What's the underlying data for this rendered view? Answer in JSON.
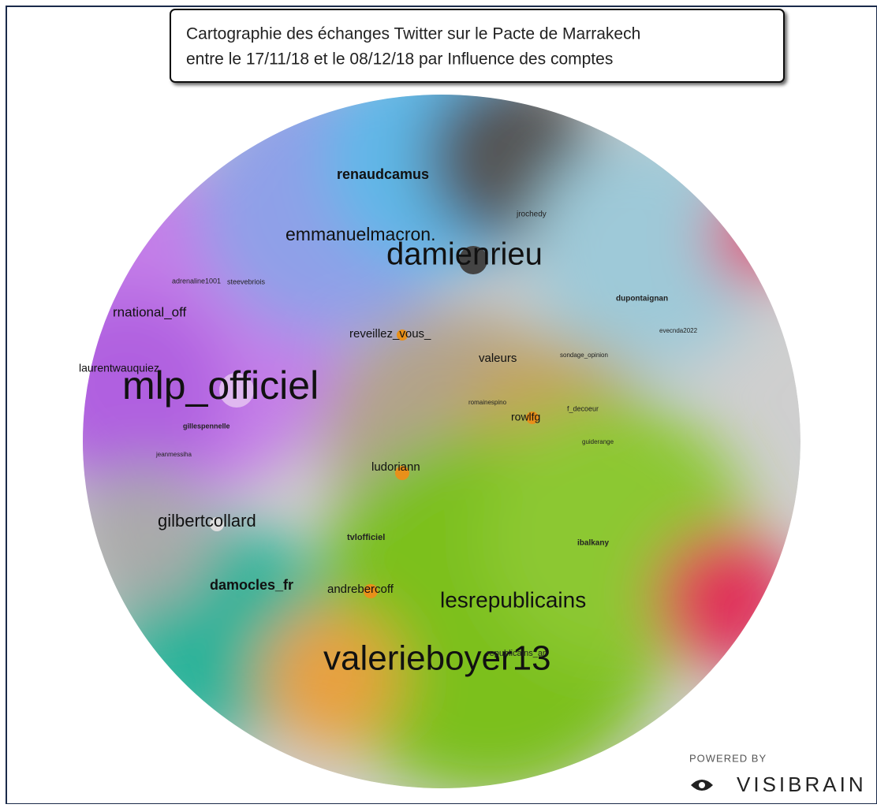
{
  "title": {
    "lines": [
      "Cartographie des échanges Twitter sur le Pacte de Marrakech",
      "entre le 17/11/18 et le 08/12/18 par Influence des comptes"
    ]
  },
  "nodes": [
    {
      "label": "mlp_officiel"
    },
    {
      "label": "damienrieu"
    },
    {
      "label": "valerieboyer13"
    },
    {
      "label": "lesrepublicains"
    },
    {
      "label": "emmanuelmacron."
    },
    {
      "label": "renaudcamus"
    },
    {
      "label": "gilbertcollard"
    },
    {
      "label": "damocles_fr"
    },
    {
      "label": "rnational_off"
    },
    {
      "label": "laurentwauquiez"
    },
    {
      "label": "reveillez_vous_"
    },
    {
      "label": "valeurs"
    },
    {
      "label": "rowlfg"
    },
    {
      "label": "ludoriann"
    },
    {
      "label": "andrebercoff"
    },
    {
      "label": "tvlofficiel"
    },
    {
      "label": "gillespennelle"
    },
    {
      "label": "jrochedy"
    },
    {
      "label": "dupontaignan"
    },
    {
      "label": "ibalkany"
    },
    {
      "label": "republicains_an"
    },
    {
      "label": "adrenaline1001"
    },
    {
      "label": "steevebriois"
    },
    {
      "label": "jeanmessiha"
    },
    {
      "label": "romainespino"
    },
    {
      "label": "f_decoeur"
    },
    {
      "label": "guiderange"
    },
    {
      "label": "sondage_opinion"
    },
    {
      "label": "evecnda2022"
    }
  ],
  "branding": {
    "powered": "POWERED BY",
    "brand": "VISIBRAIN"
  }
}
